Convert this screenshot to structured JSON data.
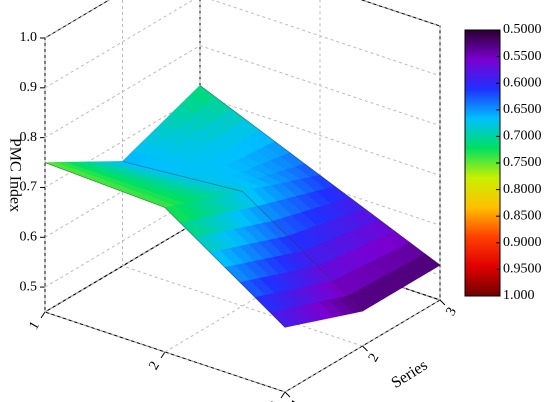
{
  "chart_data": {
    "type": "surface",
    "zlabel": "PMC Index",
    "ylabel": "Series",
    "x": [
      1,
      2,
      3
    ],
    "y": [
      1,
      2,
      3
    ],
    "z": [
      [
        0.75,
        0.74,
        0.58
      ],
      [
        0.66,
        0.68,
        0.52
      ],
      [
        0.72,
        0.62,
        0.52
      ]
    ],
    "xlim": [
      1,
      3
    ],
    "ylim": [
      1,
      3
    ],
    "zlim": [
      0.45,
      1
    ],
    "xticks": [
      1,
      2,
      3
    ],
    "yticks": [
      1,
      2,
      3
    ],
    "zticks": [
      0.5,
      0.6,
      0.7,
      0.8,
      0.9,
      {
        "value": 1,
        "label": "1.0"
      }
    ],
    "grid": true,
    "colormap": [
      "#2a0030",
      "#7a00d0",
      "#2030ff",
      "#00c0ff",
      "#00e060",
      "#c8f000",
      "#ffc000",
      "#ff4000",
      "#e00000",
      "#700000"
    ],
    "colorbar_ticks": [
      {
        "value": 0.5,
        "label": "0.5000"
      },
      {
        "value": 0.55,
        "label": "0.5500"
      },
      {
        "value": 0.6,
        "label": "0.6000"
      },
      {
        "value": 0.65,
        "label": "0.6500"
      },
      {
        "value": 0.7,
        "label": "0.7000"
      },
      {
        "value": 0.75,
        "label": "0.7500"
      },
      {
        "value": 0.8,
        "label": "0.8000"
      },
      {
        "value": 0.85,
        "label": "0.8500"
      },
      {
        "value": 0.9,
        "label": "0.9000"
      },
      {
        "value": 0.95,
        "label": "0.9500"
      },
      {
        "value": 1,
        "label": "1.000"
      }
    ],
    "colorbar_lim": [
      0.5,
      1
    ]
  }
}
